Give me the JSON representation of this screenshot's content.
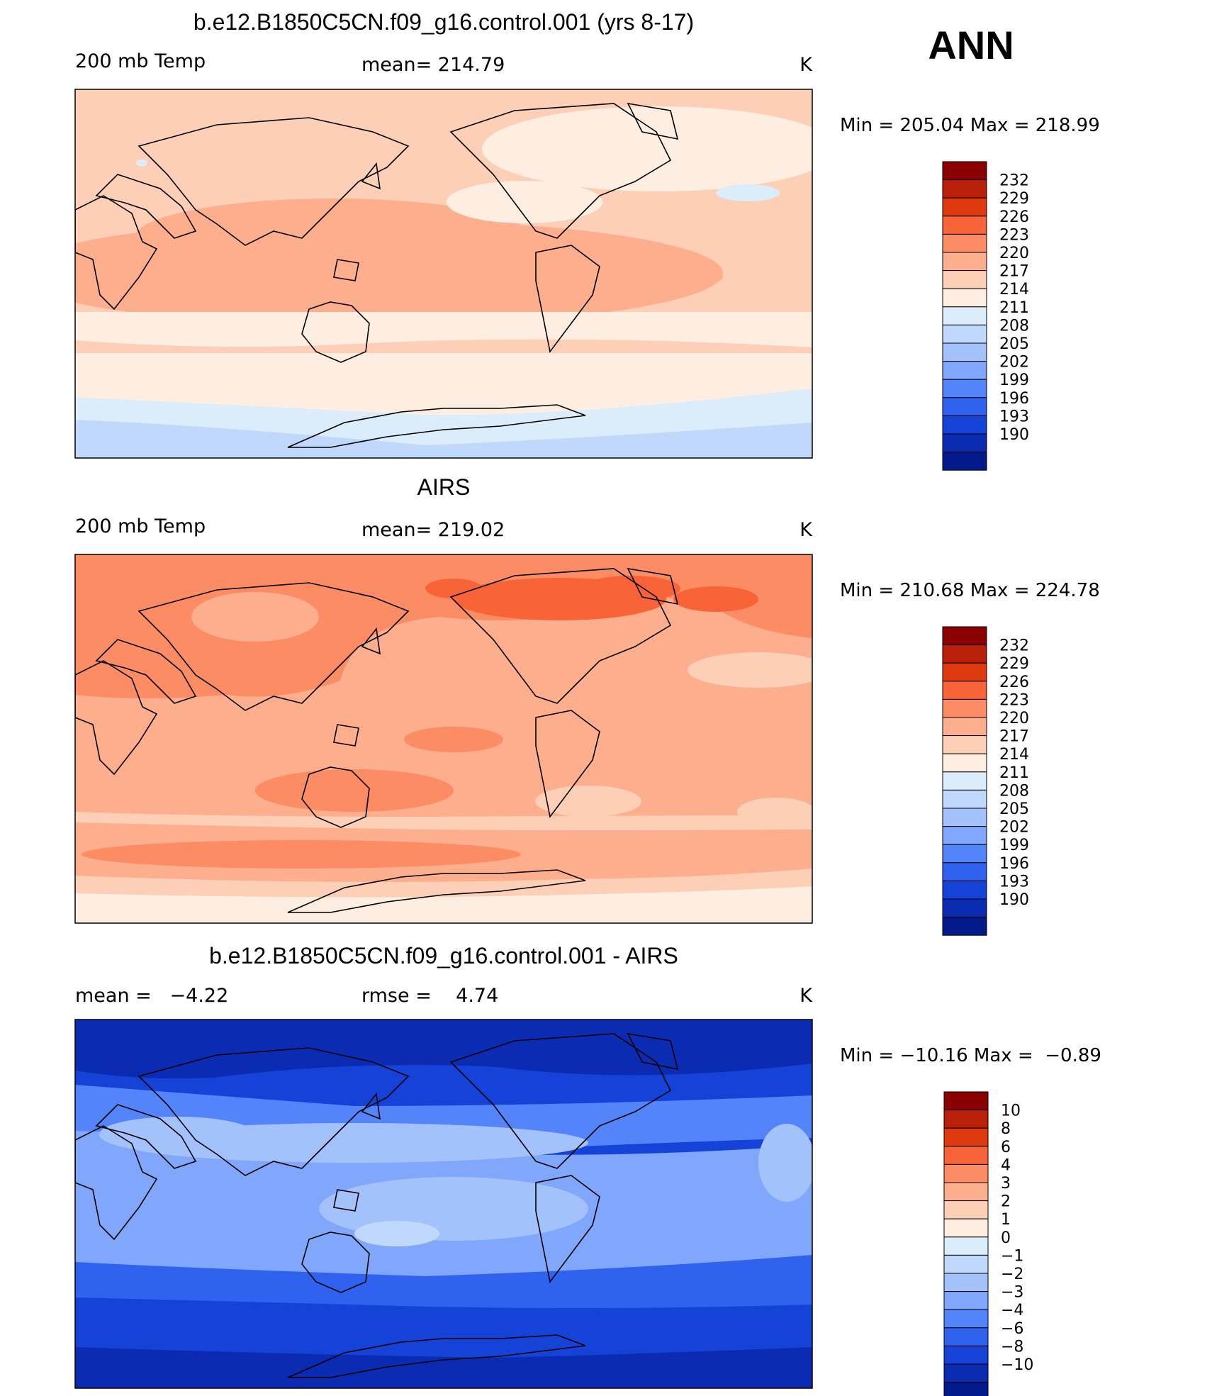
{
  "season": "ANN",
  "colors": {
    "warm": [
      "#8b0000",
      "#b8200a",
      "#de3a0e",
      "#f86437",
      "#fb8c63",
      "#fdae8c",
      "#fdcfb6",
      "#feeee1"
    ],
    "cool": [
      "#dbecfb",
      "#c0d8fb",
      "#a3c1fb",
      "#80a7fb",
      "#5484fa",
      "#2f62ee",
      "#1543d7",
      "#0b2cb2",
      "#031a8b"
    ]
  },
  "panels": [
    {
      "title": "b.e12.B1850C5CN.f09_g16.control.001 (yrs 8-17)",
      "left_label": "200 mb Temp",
      "center_label": "mean= 214.79",
      "unit": "K",
      "minmax": "Min = 205.04 Max = 218.99",
      "colorbar_labels": [
        "232",
        "229",
        "226",
        "223",
        "220",
        "217",
        "214",
        "211",
        "208",
        "205",
        "202",
        "199",
        "196",
        "193",
        "190"
      ]
    },
    {
      "title": "AIRS",
      "left_label": "200 mb Temp",
      "center_label": "mean= 219.02",
      "unit": "K",
      "minmax": "Min = 210.68 Max = 224.78",
      "colorbar_labels": [
        "232",
        "229",
        "226",
        "223",
        "220",
        "217",
        "214",
        "211",
        "208",
        "205",
        "202",
        "199",
        "196",
        "193",
        "190"
      ]
    },
    {
      "title": "b.e12.B1850C5CN.f09_g16.control.001 - AIRS",
      "left_label": "mean =   −4.22",
      "center_label": "rmse =    4.74",
      "unit": "K",
      "minmax": "Min = −10.16 Max =  −0.89",
      "colorbar_labels": [
        "10",
        "8",
        "6",
        "4",
        "3",
        "2",
        "1",
        "0",
        "−1",
        "−2",
        "−3",
        "−4",
        "−6",
        "−8",
        "−10"
      ]
    }
  ]
}
